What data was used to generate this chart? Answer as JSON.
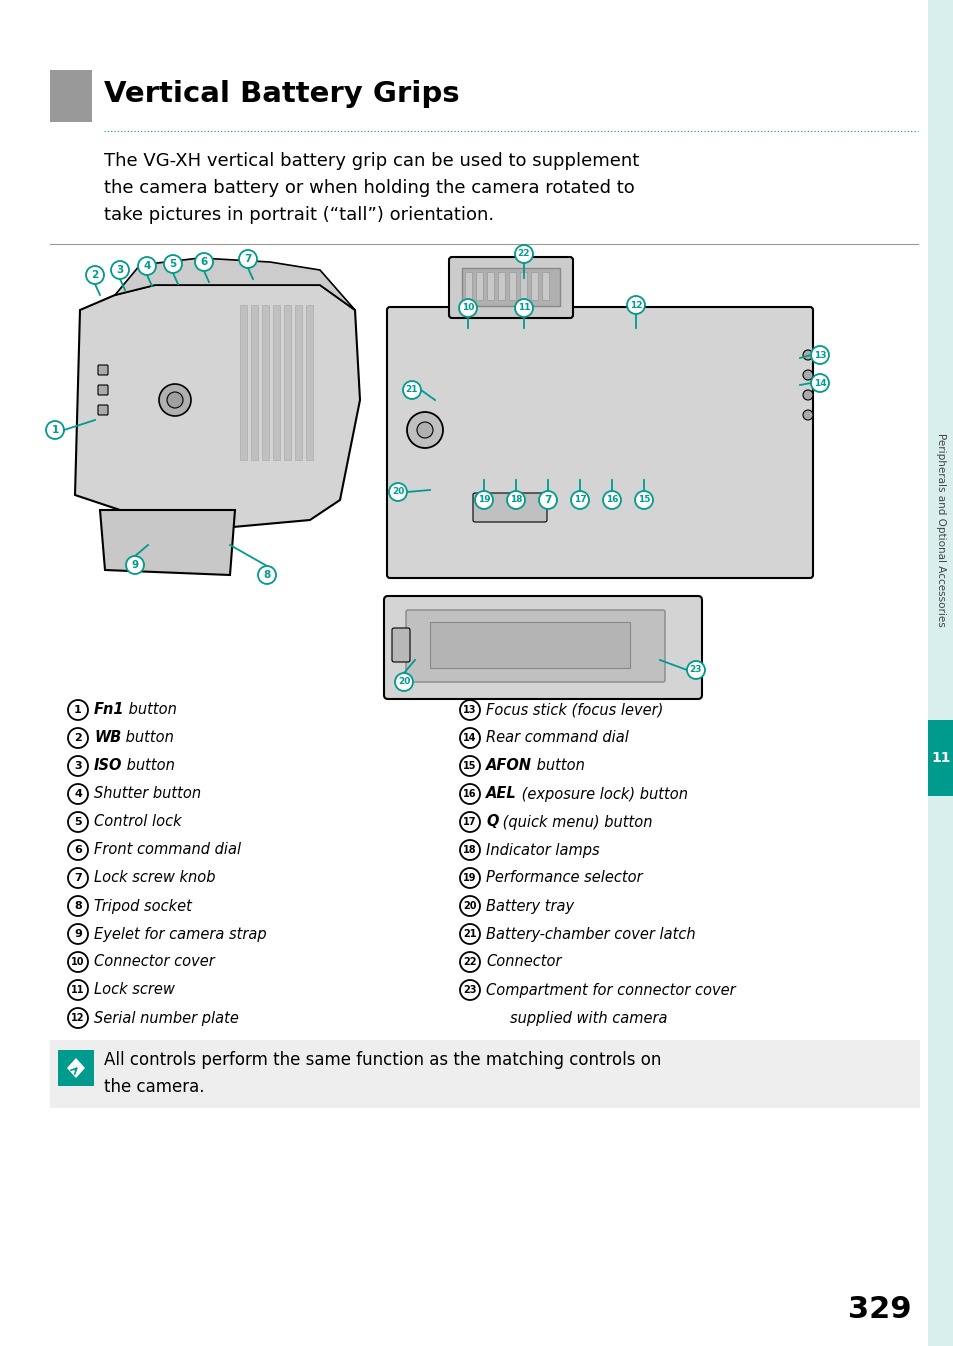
{
  "title": "Vertical Battery Grips",
  "subtitle_lines": [
    "The VG-XH vertical battery grip can be used to supplement",
    "the camera battery or when holding the camera rotated to",
    "take pictures in portrait (“tall”) orientation."
  ],
  "left_items": [
    [
      "1",
      "Fn1",
      " button"
    ],
    [
      "2",
      "WB",
      " button"
    ],
    [
      "3",
      "ISO",
      " button"
    ],
    [
      "4",
      "",
      "Shutter button"
    ],
    [
      "5",
      "",
      "Control lock"
    ],
    [
      "6",
      "",
      "Front command dial"
    ],
    [
      "7",
      "",
      "Lock screw knob"
    ],
    [
      "8",
      "",
      "Tripod socket"
    ],
    [
      "9",
      "",
      "Eyelet for camera strap"
    ],
    [
      "10",
      "",
      "Connector cover"
    ],
    [
      "11",
      "",
      "Lock screw"
    ],
    [
      "12",
      "",
      "Serial number plate"
    ]
  ],
  "right_items": [
    [
      "13",
      "",
      "Focus stick (focus lever)"
    ],
    [
      "14",
      "",
      "Rear command dial"
    ],
    [
      "15",
      "AFON",
      " button"
    ],
    [
      "16",
      "AEL",
      " (exposure lock) button"
    ],
    [
      "17",
      "Q",
      " (quick menu) button"
    ],
    [
      "18",
      "",
      "Indicator lamps"
    ],
    [
      "19",
      "",
      "Performance selector"
    ],
    [
      "20",
      "",
      "Battery tray"
    ],
    [
      "21",
      "",
      "Battery-chamber cover latch"
    ],
    [
      "22",
      "",
      "Connector"
    ],
    [
      "23",
      "",
      "Compartment for connector cover"
    ],
    [
      "",
      "",
      "supplied with camera"
    ]
  ],
  "note_line1": "All controls perform the same function as the matching controls on",
  "note_line2": "the camera.",
  "page_number": "329",
  "chapter_label": "Peripherals and Optional Accessories",
  "chapter_number": "11",
  "header_box_color": "#999999",
  "teal_color": "#009B8D",
  "note_bg_color": "#eeeeee",
  "chapter_tab_color": "#009B8D",
  "side_tab_color": "#d8efec"
}
